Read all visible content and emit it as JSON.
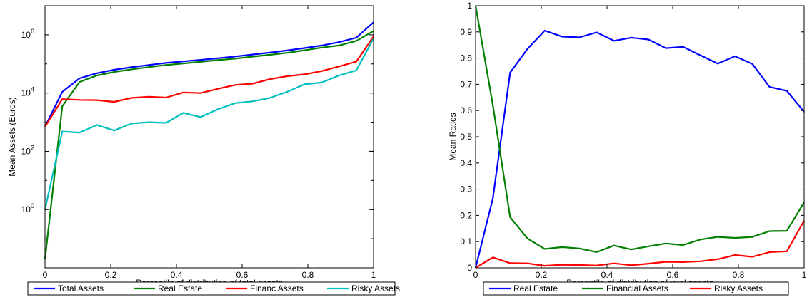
{
  "chart_data": [
    {
      "type": "line",
      "xlabel": "Percentile of distribution of total assets",
      "ylabel": "Mean Assets (Euros)",
      "yscale": "log",
      "xlim": [
        0,
        1
      ],
      "ylim": [
        0.01,
        10000000
      ],
      "grid": false,
      "legend_position": "bottom",
      "x_ticks": [
        "0",
        "0.2",
        "0.4",
        "0.6",
        "0.8",
        "1"
      ],
      "y_ticks": [
        {
          "base": "10",
          "exp": "0",
          "value": 1
        },
        {
          "base": "10",
          "exp": "2",
          "value": 100
        },
        {
          "base": "10",
          "exp": "4",
          "value": 10000
        },
        {
          "base": "10",
          "exp": "6",
          "value": 1000000
        }
      ],
      "x": [
        0,
        0.0526,
        0.1053,
        0.1579,
        0.2105,
        0.2632,
        0.3158,
        0.3684,
        0.4211,
        0.4737,
        0.5263,
        0.5789,
        0.6316,
        0.6842,
        0.7368,
        0.7895,
        0.8421,
        0.8947,
        0.9474,
        1
      ],
      "series": [
        {
          "name": "Total Assets",
          "color": "#0000ff",
          "values": [
            700,
            11000,
            32000,
            48000,
            63000,
            77000,
            92000,
            108000,
            122000,
            138000,
            157000,
            180000,
            210000,
            245000,
            290000,
            350000,
            430000,
            560000,
            800000,
            2700000
          ]
        },
        {
          "name": "Real Estate",
          "color": "#008000",
          "values": [
            0.02,
            3500,
            24000,
            40000,
            53000,
            65000,
            78000,
            92000,
            104000,
            118000,
            135000,
            152000,
            178000,
            205000,
            240000,
            295000,
            365000,
            430000,
            620000,
            1350000
          ]
        },
        {
          "name": "Financ Assets",
          "color": "#ff0000",
          "values": [
            700,
            6200,
            5800,
            5700,
            5000,
            6800,
            7500,
            7000,
            10500,
            10000,
            14000,
            19000,
            21000,
            30000,
            38000,
            44000,
            57000,
            82000,
            120000,
            880000
          ]
        },
        {
          "name": "Risky Assets",
          "color": "#00bfbf",
          "values": [
            1,
            480,
            440,
            800,
            520,
            900,
            1000,
            950,
            2100,
            1500,
            2800,
            4500,
            5200,
            6800,
            11000,
            20000,
            23000,
            40000,
            60000,
            750000
          ]
        }
      ]
    },
    {
      "type": "line",
      "xlabel": "Percentile of distribution of total assets",
      "ylabel": "Mean Ratios",
      "xlim": [
        0,
        1
      ],
      "ylim": [
        0,
        1
      ],
      "grid": false,
      "legend_position": "bottom",
      "x_ticks": [
        "0",
        "0.2",
        "0.4",
        "0.6",
        "0.8",
        "1"
      ],
      "y_ticks": [
        "0",
        "0.1",
        "0.2",
        "0.3",
        "0.4",
        "0.5",
        "0.6",
        "0.7",
        "0.8",
        "0.9",
        "1"
      ],
      "x": [
        0,
        0.0526,
        0.1053,
        0.1579,
        0.2105,
        0.2632,
        0.3158,
        0.3684,
        0.4211,
        0.4737,
        0.5263,
        0.5789,
        0.6316,
        0.6842,
        0.7368,
        0.7895,
        0.8421,
        0.8947,
        0.9474,
        1
      ],
      "series": [
        {
          "name": "Real Estate",
          "color": "#0000ff",
          "values": [
            0,
            0.265,
            0.745,
            0.835,
            0.905,
            0.882,
            0.879,
            0.898,
            0.866,
            0.878,
            0.871,
            0.838,
            0.843,
            0.811,
            0.779,
            0.807,
            0.778,
            0.69,
            0.675,
            0.595
          ]
        },
        {
          "name": "Financial Assets",
          "color": "#008000",
          "values": [
            1,
            0.62,
            0.193,
            0.112,
            0.072,
            0.079,
            0.074,
            0.06,
            0.085,
            0.07,
            0.082,
            0.093,
            0.087,
            0.108,
            0.118,
            0.114,
            0.118,
            0.14,
            0.141,
            0.25
          ]
        },
        {
          "name": "Risky Assets",
          "color": "#ff0000",
          "values": [
            0,
            0.04,
            0.018,
            0.017,
            0.008,
            0.012,
            0.011,
            0.009,
            0.017,
            0.01,
            0.016,
            0.023,
            0.022,
            0.025,
            0.033,
            0.049,
            0.042,
            0.06,
            0.063,
            0.18
          ]
        }
      ]
    }
  ]
}
